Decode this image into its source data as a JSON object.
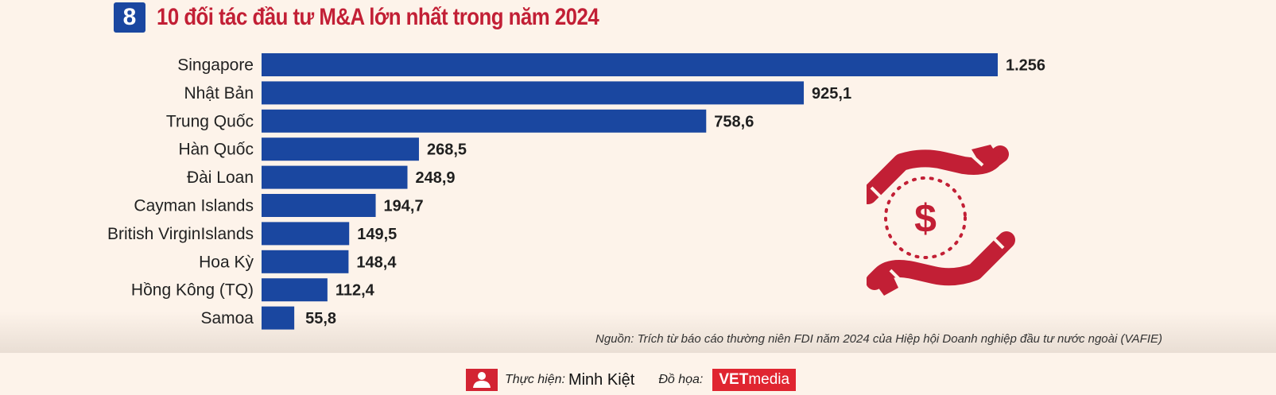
{
  "header": {
    "number": "8",
    "title": "10 đối tác đầu tư M&A lớn nhất trong năm 2024"
  },
  "chart_data": {
    "type": "bar",
    "orientation": "horizontal",
    "title": "10 đối tác đầu tư M&A lớn nhất trong năm 2024",
    "categories": [
      "Singapore",
      "Nhật Bản",
      "Trung Quốc",
      "Hàn Quốc",
      "Đài Loan",
      "Cayman Islands",
      "British VirginIslands",
      "Hoa Kỳ",
      "Hồng Kông (TQ)",
      "Samoa"
    ],
    "values": [
      1256,
      925.1,
      758.6,
      268.5,
      248.9,
      194.7,
      149.5,
      148.4,
      112.4,
      55.8
    ],
    "value_labels": [
      "1.256",
      "925,1",
      "758,6",
      "268,5",
      "248,9",
      "194,7",
      "149,5",
      "148,4",
      "112,4",
      "55,8"
    ],
    "bar_color": "#1a47a0",
    "xlim": [
      0,
      1256
    ],
    "xlabel": "",
    "ylabel": "",
    "grid": false
  },
  "source": "Nguồn: Trích từ báo cáo thường niên FDI năm 2024 của Hiệp hội Doanh nghiệp đầu tư nước ngoài (VAFIE)",
  "footer": {
    "made_by_label": "Thực hiện:",
    "made_by_name": "Minh Kiệt",
    "graphics_label": "Đồ họa:",
    "logo_main": "VET",
    "logo_sub": "media"
  },
  "colors": {
    "accent_red": "#c21f35",
    "brand_blue": "#1a47a0",
    "background": "#fdf3ea"
  },
  "icons": {
    "illustration": "hands-with-dollar-icon",
    "author": "person-icon"
  }
}
